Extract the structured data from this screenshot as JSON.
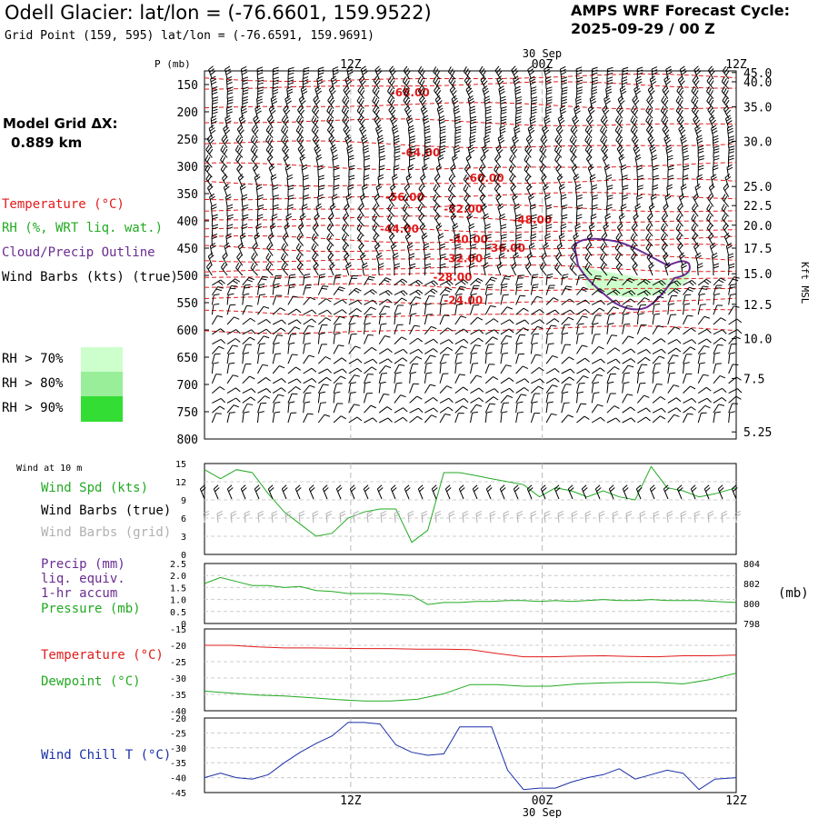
{
  "header": {
    "title": "Odell Glacier:  lat/lon = (-76.6601, 159.9522)",
    "grid_point": "Grid Point (159, 595) lat/lon = (-76.6591, 159.9691)",
    "cycle_label": "AMPS WRF Forecast Cycle:",
    "cycle_value": "2025-09-29 / 00  Z"
  },
  "model_grid": {
    "label": "Model Grid ΔX:",
    "value": "0.889 km"
  },
  "colors": {
    "temperature": "#e11b1b",
    "rh": "#22aa22",
    "cloud": "#6a2c91",
    "wind_chill": "#1a2fa8",
    "rh70": "#ccffcc",
    "rh80": "#99ee99",
    "rh90": "#33dd33",
    "grid_barbs": "#b0b0b0"
  },
  "time_axis": {
    "top_labels": [
      "12Z",
      "00Z",
      "12Z"
    ],
    "date_label": "30 Sep",
    "bottom_labels": [
      "12Z",
      "00Z",
      "12Z"
    ],
    "bottom_date": "30 Sep"
  },
  "legend": {
    "temperature": "Temperature (°C)",
    "rh": "RH (%, WRT liq. wat.)",
    "cloud": "Cloud/Precip Outline",
    "wind": "Wind Barbs (kts) (true)",
    "rh70": "RH > 70%",
    "rh80": "RH > 80%",
    "rh90": "RH > 90%"
  },
  "chart_data": [
    {
      "type": "cross-section",
      "pressure_axis_label": "P (mb)",
      "pressure_ticks": [
        150,
        200,
        250,
        300,
        350,
        400,
        450,
        500,
        550,
        600,
        650,
        700,
        750,
        800
      ],
      "height_axis_label": "Kft MSL",
      "height_ticks": [
        "45.0",
        "40.0",
        "35.0",
        "30.0",
        "25.0",
        "22.5",
        "20.0",
        "17.5",
        "15.0",
        "12.5",
        "10.0",
        "7.5",
        "5.25"
      ],
      "height_tick_pressures": [
        128,
        145,
        191,
        254,
        337,
        372,
        408,
        450,
        497,
        553,
        616,
        689,
        787
      ],
      "isotherm_labels": [
        {
          "text": "-68.00",
          "t": 0.35,
          "p": 165
        },
        {
          "text": "-64.00",
          "t": 0.37,
          "p": 275
        },
        {
          "text": "-60.00",
          "t": 0.49,
          "p": 322
        },
        {
          "text": "-56.00",
          "t": 0.34,
          "p": 357
        },
        {
          "text": "-52.00",
          "t": 0.45,
          "p": 378
        },
        {
          "text": "-48.00",
          "t": 0.58,
          "p": 398
        },
        {
          "text": "-44.00",
          "t": 0.33,
          "p": 415
        },
        {
          "text": "-40.00",
          "t": 0.46,
          "p": 434
        },
        {
          "text": "-36.00",
          "t": 0.53,
          "p": 450
        },
        {
          "text": "-32.00",
          "t": 0.45,
          "p": 469
        },
        {
          "text": "-28.00",
          "t": 0.43,
          "p": 503
        },
        {
          "text": "-24.00",
          "t": 0.45,
          "p": 546
        }
      ]
    },
    {
      "type": "line",
      "title": "Wind at 10 m",
      "labels": [
        "Wind Spd (kts)",
        "Wind Barbs (true)",
        "Wind Barbs (grid)"
      ],
      "x": [
        0,
        0.03,
        0.06,
        0.09,
        0.12,
        0.15,
        0.18,
        0.21,
        0.24,
        0.27,
        0.3,
        0.33,
        0.36,
        0.39,
        0.42,
        0.45,
        0.48,
        0.51,
        0.54,
        0.57,
        0.6,
        0.63,
        0.66,
        0.69,
        0.72,
        0.75,
        0.78,
        0.81,
        0.84,
        0.87,
        0.9,
        0.93,
        0.96,
        1.0
      ],
      "values": [
        14,
        12.5,
        14,
        13.5,
        10,
        7,
        5,
        3,
        3.5,
        6,
        7,
        7.5,
        7.5,
        2,
        4,
        13.5,
        13.5,
        13,
        12.5,
        12,
        11.5,
        9.5,
        11,
        10.5,
        9.5,
        10.5,
        9.5,
        9,
        14.5,
        11,
        10.5,
        9.5,
        10,
        11
      ],
      "ylim": [
        0,
        15
      ],
      "yticks": [
        0,
        3,
        6,
        9,
        12,
        15
      ]
    },
    {
      "type": "line",
      "labels": [
        "Precip (mm)",
        "liq. equiv.",
        "1-hr accum",
        "Pressure (mb)"
      ],
      "left_ticks": [
        "0",
        "0.5",
        "1.0",
        "1.5",
        "2.0",
        "2.5"
      ],
      "right_ticks": [
        "798",
        "800",
        "802",
        "804"
      ],
      "right_unit": "(mb)",
      "pressure_series": {
        "x": [
          0,
          0.03,
          0.06,
          0.09,
          0.12,
          0.15,
          0.18,
          0.21,
          0.24,
          0.27,
          0.3,
          0.33,
          0.36,
          0.39,
          0.42,
          0.45,
          0.48,
          0.51,
          0.54,
          0.57,
          0.6,
          0.63,
          0.66,
          0.69,
          0.72,
          0.75,
          0.78,
          0.81,
          0.84,
          0.87,
          0.9,
          0.93,
          0.96,
          1.0
        ],
        "values": [
          802,
          802.6,
          802.2,
          801.8,
          801.8,
          801.6,
          801.7,
          801.3,
          801.2,
          801.0,
          801.0,
          801.0,
          800.9,
          800.8,
          799.9,
          800.1,
          800.1,
          800.2,
          800.2,
          800.3,
          800.3,
          800.2,
          800.3,
          800.2,
          800.3,
          800.4,
          800.3,
          800.3,
          800.4,
          800.3,
          800.3,
          800.3,
          800.2,
          800.1
        ]
      },
      "ylim_right": [
        798,
        804
      ]
    },
    {
      "type": "line",
      "labels": [
        "Temperature (°C)",
        "Dewpoint (°C)"
      ],
      "yticks": [
        -40,
        -35,
        -30,
        -25,
        -20,
        -15
      ],
      "ylim": [
        -40,
        -15
      ],
      "series": [
        {
          "name": "Temperature (°C)",
          "x": [
            0,
            0.05,
            0.1,
            0.15,
            0.2,
            0.25,
            0.3,
            0.35,
            0.4,
            0.45,
            0.5,
            0.55,
            0.6,
            0.65,
            0.7,
            0.75,
            0.8,
            0.85,
            0.9,
            0.95,
            1.0
          ],
          "values": [
            -20,
            -20,
            -20.5,
            -20.8,
            -20.8,
            -20.9,
            -21,
            -21,
            -21.2,
            -21.2,
            -21.3,
            -22.5,
            -23.5,
            -23.5,
            -23.3,
            -23.2,
            -23.4,
            -23.5,
            -23.2,
            -23.2,
            -23
          ]
        },
        {
          "name": "Dewpoint (°C)",
          "x": [
            0,
            0.05,
            0.1,
            0.15,
            0.2,
            0.25,
            0.3,
            0.35,
            0.4,
            0.45,
            0.5,
            0.55,
            0.6,
            0.65,
            0.7,
            0.75,
            0.8,
            0.85,
            0.9,
            0.95,
            1.0
          ],
          "values": [
            -34,
            -34.6,
            -35.2,
            -35.5,
            -36,
            -36.6,
            -37,
            -37,
            -36.5,
            -34.8,
            -32,
            -32,
            -32.5,
            -32.5,
            -31.8,
            -31.5,
            -31.3,
            -31.3,
            -31.8,
            -30.5,
            -28.5
          ]
        }
      ]
    },
    {
      "type": "line",
      "labels": [
        "Wind Chill T (°C)"
      ],
      "yticks": [
        -45,
        -40,
        -35,
        -30,
        -25,
        -20
      ],
      "ylim": [
        -45,
        -20
      ],
      "x": [
        0,
        0.03,
        0.06,
        0.09,
        0.12,
        0.15,
        0.18,
        0.21,
        0.24,
        0.27,
        0.3,
        0.33,
        0.36,
        0.39,
        0.42,
        0.45,
        0.48,
        0.51,
        0.54,
        0.57,
        0.6,
        0.63,
        0.66,
        0.69,
        0.72,
        0.75,
        0.78,
        0.81,
        0.84,
        0.87,
        0.9,
        0.93,
        0.96,
        1.0
      ],
      "values": [
        -40,
        -38.5,
        -40,
        -40.5,
        -39,
        -35,
        -31.5,
        -28.5,
        -26,
        -21.5,
        -21.5,
        -22,
        -29,
        -31.5,
        -32.5,
        -32,
        -23,
        -23,
        -23,
        -37.5,
        -44,
        -43.5,
        -43.5,
        -41.5,
        -40,
        -39,
        -37,
        -40.5,
        -39,
        -37.5,
        -38.5,
        -44,
        -40.5,
        -40
      ]
    }
  ]
}
